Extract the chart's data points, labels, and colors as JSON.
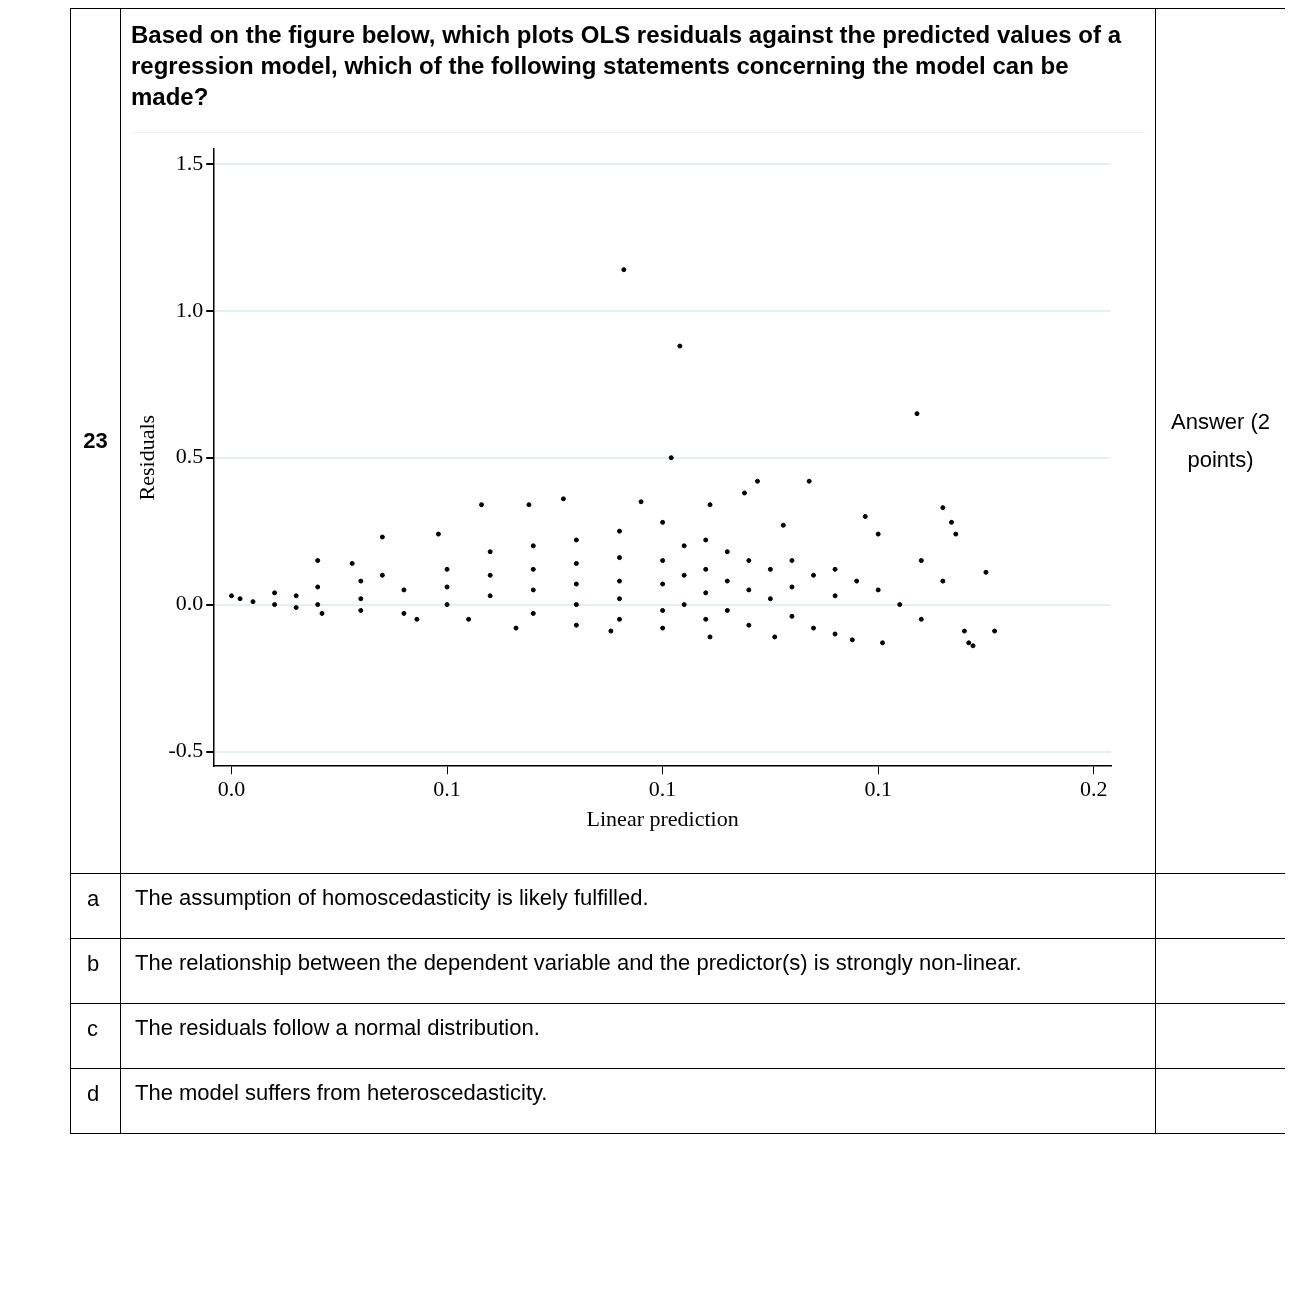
{
  "chart_data": {
    "type": "scatter",
    "title": "Based on the figure below, which plots OLS residuals against the predicted values of a regression model, which of the following statements concerning the model can be made?",
    "xlabel": "Linear prediction",
    "ylabel": "Residuals",
    "annotations": [
      "23",
      "Answer (2 points)",
      "a",
      "The assumption of homoscedasticity is likely fulfilled.",
      "b",
      "The relationship between the dependent variable and the predictor(s) is strongly non-linear.",
      "c",
      "The residuals follow a normal distribution.",
      "d",
      "The model suffers from heteroscedasticity."
    ],
    "xlim": [
      -0.004,
      0.204
    ],
    "ylim": [
      -0.55,
      1.55
    ],
    "xticks": [
      {
        "value": 0,
        "label": "0.0"
      },
      {
        "value": 0.05,
        "label": "0.1"
      },
      {
        "value": 0.1,
        "label": "0.1"
      },
      {
        "value": 0.15,
        "label": "0.1"
      },
      {
        "value": 0.2,
        "label": "0.2"
      }
    ],
    "yticks": [
      -0.5,
      {
        "value": 0,
        "label": "0.0"
      },
      0.5,
      {
        "value": 1,
        "label": "1.0"
      },
      1.5
    ],
    "grid": "y",
    "marker": "circle",
    "series": [
      {
        "color": "#000000",
        "x": [
          0,
          0.002,
          0.005,
          0.01,
          0.01,
          0.015,
          0.015,
          0.02,
          0.02,
          0.02,
          0.021,
          0.028,
          0.03,
          0.03,
          0.03,
          0.035,
          0.035,
          0.04,
          0.04,
          0.043,
          0.048,
          0.05,
          0.05,
          0.05,
          0.055,
          0.058,
          0.06,
          0.06,
          0.06,
          0.066,
          0.069,
          0.07,
          0.07,
          0.07,
          0.07,
          0.077,
          0.08,
          0.08,
          0.08,
          0.08,
          0.08,
          0.088,
          0.091,
          0.09,
          0.09,
          0.09,
          0.09,
          0.09,
          0.095,
          0.1,
          0.1,
          0.1,
          0.1,
          0.1,
          0.102,
          0.104,
          0.105,
          0.105,
          0.105,
          0.111,
          0.111,
          0.11,
          0.11,
          0.11,
          0.11,
          0.115,
          0.115,
          0.115,
          0.119,
          0.12,
          0.12,
          0.12,
          0.122,
          0.125,
          0.125,
          0.126,
          0.128,
          0.13,
          0.13,
          0.13,
          0.134,
          0.135,
          0.135,
          0.14,
          0.14,
          0.14,
          0.144,
          0.145,
          0.147,
          0.15,
          0.15,
          0.151,
          0.155,
          0.159,
          0.16,
          0.16,
          0.165,
          0.165,
          0.167,
          0.168,
          0.17,
          0.171,
          0.172,
          0.175,
          0.177
        ],
        "values": [
          0.03,
          0.02,
          0.01,
          0.04,
          0,
          0.03,
          -0.01,
          0.15,
          0.06,
          0,
          -0.03,
          0.14,
          0.08,
          0.02,
          -0.02,
          0.23,
          0.1,
          0.05,
          -0.03,
          -0.05,
          0.24,
          0.12,
          0.06,
          0,
          -0.05,
          0.34,
          0.18,
          0.1,
          0.03,
          -0.08,
          0.34,
          0.2,
          0.12,
          0.05,
          -0.03,
          0.36,
          0.22,
          0.14,
          0.07,
          0,
          -0.07,
          -0.09,
          1.14,
          0.25,
          0.16,
          0.08,
          0.02,
          -0.05,
          0.35,
          0.28,
          0.15,
          0.07,
          -0.02,
          -0.08,
          0.5,
          0.88,
          0.2,
          0.1,
          0,
          0.34,
          -0.11,
          0.22,
          0.12,
          0.04,
          -0.05,
          0.18,
          0.08,
          -0.02,
          0.38,
          0.15,
          0.05,
          -0.07,
          0.42,
          0.12,
          0.02,
          -0.11,
          0.27,
          0.15,
          0.06,
          -0.04,
          0.42,
          0.1,
          -0.08,
          0.12,
          0.03,
          -0.1,
          -0.12,
          0.08,
          0.3,
          0.24,
          0.05,
          -0.13,
          0,
          0.65,
          0.15,
          -0.05,
          0.33,
          0.08,
          0.28,
          0.24,
          -0.09,
          -0.13,
          -0.14,
          0.11,
          -0.09
        ]
      }
    ]
  }
}
